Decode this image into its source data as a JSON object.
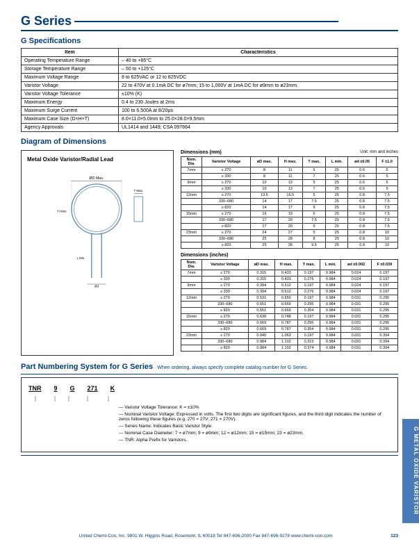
{
  "title": "G Series",
  "specs": {
    "heading": "G Specifications",
    "headers": [
      "Item",
      "Characteristics"
    ],
    "rows": [
      [
        "Operating Temperature Range",
        "– 40 to +85°C"
      ],
      [
        "Storage Temperature Range",
        "– 50 to +125°C"
      ],
      [
        "Maximum Voltage Range",
        "8 to 625VAC or 12 to 825VDC"
      ],
      [
        "Varistor Voltage",
        "22 to 470V at 0.1mA DC for ø7mm; 15 to 1,000V at 1mA DC for ø9mm to ø23mm."
      ],
      [
        "Varistor Voltage Tolerance",
        "±10% (K)"
      ],
      [
        "Maximum Energy",
        "0.4 to 230 Joules at 2ms"
      ],
      [
        "Maximum Surge Current",
        "100 to 6,500A at 8/20µs"
      ],
      [
        "Maximum Case Size (D×H×T)",
        "8.0×11.0×5.0mm to 25.0×28.0×9.5mm"
      ],
      [
        "Agency Approvals",
        "UL1414 and 1449; CSA 097864"
      ]
    ]
  },
  "diagram": {
    "heading": "Diagram of Dimensions",
    "box_title": "Metal Oxide Varistor/Radial Lead",
    "unit": "Unit: mm and inches",
    "mm_title": "Dimensions (mm)",
    "in_title": "Dimensions (inches)",
    "cols": [
      "Nom. Dia.",
      "Varistor Voltage",
      "øD max.",
      "H max.",
      "T max.",
      "L min.",
      "ød ±0.05",
      "F ±1.0"
    ],
    "cols_in": [
      "Nom. Dia.",
      "Varistor Voltage",
      "øD max.",
      "H max.",
      "T max.",
      "L min.",
      "ød ±0.002",
      "F ±0.039"
    ],
    "mm_rows": [
      [
        "7mm",
        "≤ 270",
        "8",
        "11",
        "5",
        "25",
        "0.6",
        "5"
      ],
      [
        "",
        "≥ 330",
        "8",
        "11",
        "7",
        "25",
        "0.6",
        "5"
      ],
      [
        "9mm",
        "≤ 270",
        "10",
        "13",
        "5",
        "25",
        "0.6",
        "5"
      ],
      [
        "",
        "≥ 330",
        "10",
        "13",
        "7",
        "25",
        "0.6",
        "5"
      ],
      [
        "12mm",
        "≤ 270",
        "13.5",
        "16.5",
        "5",
        "25",
        "0.8",
        "7.5"
      ],
      [
        "",
        "330–680",
        "14",
        "17",
        "7.5",
        "25",
        "0.8",
        "7.5"
      ],
      [
        "",
        "≥ 820",
        "14",
        "17",
        "9",
        "25",
        "0.8",
        "7.5"
      ],
      [
        "15mm",
        "≤ 270",
        "16",
        "19",
        "5",
        "25",
        "0.8",
        "7.5"
      ],
      [
        "",
        "330–680",
        "17",
        "20",
        "7.5",
        "25",
        "0.8",
        "7.5"
      ],
      [
        "",
        "≥ 820",
        "17",
        "20",
        "9",
        "25",
        "0.8",
        "7.5"
      ],
      [
        "23mm",
        "≤ 270",
        "24",
        "27",
        "5",
        "25",
        "0.8",
        "10"
      ],
      [
        "",
        "330–680",
        "25",
        "28",
        "8",
        "25",
        "0.8",
        "10"
      ],
      [
        "",
        "≥ 820",
        "25",
        "28",
        "9.5",
        "25",
        "0.8",
        "10"
      ]
    ],
    "in_rows": [
      [
        "7mm",
        "≤ 270",
        "0.315",
        "0.433",
        "0.197",
        "0.984",
        "0.024",
        "0.197"
      ],
      [
        "",
        "≥ 330",
        "0.315",
        "0.433",
        "0.276",
        "0.984",
        "0.024",
        "0.197"
      ],
      [
        "9mm",
        "≤ 270",
        "0.394",
        "0.512",
        "0.197",
        "0.984",
        "0.024",
        "0.197"
      ],
      [
        "",
        "≥ 330",
        "0.394",
        "0.512",
        "0.276",
        "0.984",
        "0.024",
        "0.197"
      ],
      [
        "12mm",
        "≤ 270",
        "0.531",
        "0.650",
        "0.197",
        "0.984",
        "0.031",
        "0.295"
      ],
      [
        "",
        "330–680",
        "0.551",
        "0.669",
        "0.295",
        "0.984",
        "0.031",
        "0.295"
      ],
      [
        "",
        "≥ 820",
        "0.551",
        "0.669",
        "0.354",
        "0.984",
        "0.031",
        "0.295"
      ],
      [
        "15mm",
        "≤ 270",
        "0.630",
        "0.748",
        "0.197",
        "0.984",
        "0.031",
        "0.295"
      ],
      [
        "",
        "330–680",
        "0.669",
        "0.787",
        "0.295",
        "0.984",
        "0.031",
        "0.295"
      ],
      [
        "",
        "≥ 820",
        "0.669",
        "0.787",
        "0.354",
        "0.984",
        "0.031",
        "0.295"
      ],
      [
        "23mm",
        "≤ 270",
        "0.945",
        "1.063",
        "0.197",
        "0.984",
        "0.031",
        "0.394"
      ],
      [
        "",
        "330–680",
        "0.984",
        "1.102",
        "0.315",
        "0.984",
        "0.031",
        "0.394"
      ],
      [
        "",
        "≥ 820",
        "0.984",
        "1.102",
        "0.374",
        "0.984",
        "0.031",
        "0.394"
      ]
    ]
  },
  "partnum": {
    "heading": "Part Numbering System for G Series",
    "note": "When ordering, always specify complete catalog number for G Series.",
    "codes": [
      "TNR",
      "9",
      "G",
      "271",
      "K"
    ],
    "lines": [
      "Varistor Voltage Tolerance: K = ±10%",
      "Nominal Varistor Voltage: Expressed in volts. The first two digits are significant figures, and the third digit indicates the number of zeros following these figures (e.g. 270 = 27V; 271 = 270V).",
      "Series Name: Indicates Basic Varistor Style.",
      "Nominal Case Diameter: 7 = ø7mm; 9 = ø9mm; 12 = ø12mm; 15 = ø15mm; 23 = ø23mm.",
      "TNR: Alpha Prefix for Varistors."
    ]
  },
  "footer": {
    "text": "United Chemi-Con, Inc.  9801 W. Higgins Road, Rosemont, IL 60018  Tel 847-696-2000  Fax 847-696-9278  www.chemi-con.com",
    "page": "123"
  },
  "sidebar": "G\nMETAL OXIDE VARISTOR",
  "colors": {
    "blue": "#003d7a",
    "sideblue": "#4a7ab8"
  }
}
